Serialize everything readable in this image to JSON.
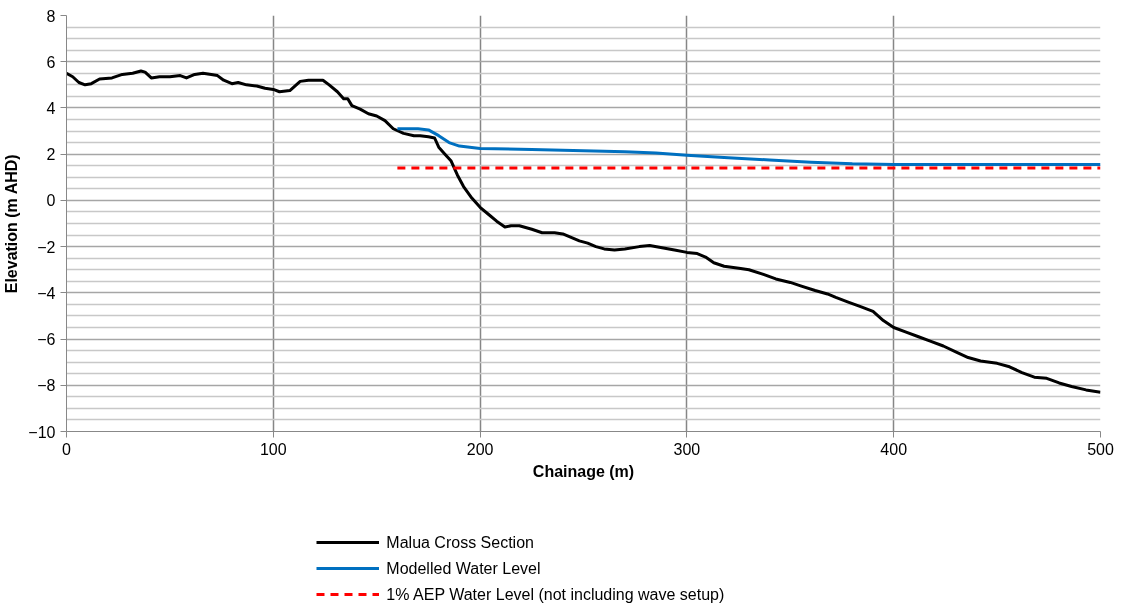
{
  "chart_data": {
    "type": "line",
    "xlabel": "Chainage (m)",
    "ylabel": "Elevation (m AHD)",
    "xlim": [
      0,
      500
    ],
    "xticks": [
      0,
      100,
      200,
      300,
      400,
      500
    ],
    "ylim": [
      -10,
      8
    ],
    "yticks": [
      -10,
      -8,
      -6,
      -4,
      -2,
      0,
      2,
      4,
      6,
      8
    ],
    "grid": true,
    "legend": "bottom",
    "series": [
      {
        "name": "Malua Cross Section",
        "color": "#000000",
        "line_style": "solid",
        "x": [
          0,
          3,
          6,
          9,
          12,
          16,
          22,
          27,
          32,
          36,
          38,
          41,
          45,
          50,
          55,
          58,
          62,
          66,
          70,
          73,
          76,
          80,
          83,
          87,
          92,
          96,
          100,
          103,
          108,
          113,
          117,
          121,
          124,
          127,
          131,
          134,
          136,
          138,
          142,
          146,
          150,
          154,
          158,
          163,
          168,
          171,
          175,
          178,
          180,
          183,
          186,
          189,
          192,
          196,
          200,
          204,
          208,
          212,
          215,
          219,
          225,
          230,
          236,
          240,
          244,
          248,
          252,
          256,
          260,
          265,
          270,
          277,
          282,
          288,
          294,
          300,
          305,
          309,
          313,
          318,
          326,
          330,
          337,
          343,
          350,
          355,
          362,
          368,
          372,
          378,
          384,
          390,
          395,
          400,
          406,
          412,
          418,
          424,
          430,
          436,
          442,
          450,
          456,
          462,
          468,
          474,
          480,
          486,
          493,
          500
        ],
        "values": [
          5.5,
          5.35,
          5.1,
          5.0,
          5.05,
          5.25,
          5.3,
          5.45,
          5.5,
          5.6,
          5.55,
          5.3,
          5.35,
          5.35,
          5.4,
          5.3,
          5.45,
          5.5,
          5.45,
          5.4,
          5.2,
          5.05,
          5.1,
          5.0,
          4.95,
          4.85,
          4.8,
          4.7,
          4.75,
          5.15,
          5.2,
          5.2,
          5.2,
          5.0,
          4.7,
          4.4,
          4.4,
          4.1,
          3.95,
          3.75,
          3.65,
          3.45,
          3.1,
          2.9,
          2.8,
          2.8,
          2.75,
          2.7,
          2.3,
          2.0,
          1.7,
          1.1,
          0.6,
          0.1,
          -0.3,
          -0.6,
          -0.9,
          -1.15,
          -1.1,
          -1.1,
          -1.25,
          -1.4,
          -1.4,
          -1.45,
          -1.6,
          -1.75,
          -1.85,
          -2.0,
          -2.1,
          -2.15,
          -2.1,
          -2.0,
          -1.95,
          -2.05,
          -2.15,
          -2.25,
          -2.3,
          -2.45,
          -2.7,
          -2.85,
          -2.95,
          -3.0,
          -3.2,
          -3.4,
          -3.55,
          -3.7,
          -3.9,
          -4.05,
          -4.2,
          -4.4,
          -4.6,
          -4.8,
          -5.2,
          -5.5,
          -5.7,
          -5.9,
          -6.1,
          -6.3,
          -6.55,
          -6.8,
          -6.95,
          -7.05,
          -7.2,
          -7.45,
          -7.65,
          -7.7,
          -7.9,
          -8.05,
          -8.2,
          -8.3
        ]
      },
      {
        "name": "Modelled Water Level",
        "color": "#0070c0",
        "line_style": "solid",
        "x": [
          160,
          170,
          175,
          180,
          185,
          190,
          200,
          225,
          250,
          270,
          285,
          300,
          320,
          340,
          360,
          380,
          400,
          450,
          500
        ],
        "values": [
          3.1,
          3.1,
          3.05,
          2.8,
          2.5,
          2.35,
          2.25,
          2.2,
          2.15,
          2.1,
          2.05,
          1.95,
          1.85,
          1.75,
          1.65,
          1.58,
          1.55,
          1.55,
          1.55
        ]
      },
      {
        "name": "1% AEP Water Level (not including wave setup)",
        "color": "#ff0000",
        "line_style": "dashed",
        "x": [
          160,
          500
        ],
        "values": [
          1.4,
          1.4
        ]
      }
    ]
  }
}
